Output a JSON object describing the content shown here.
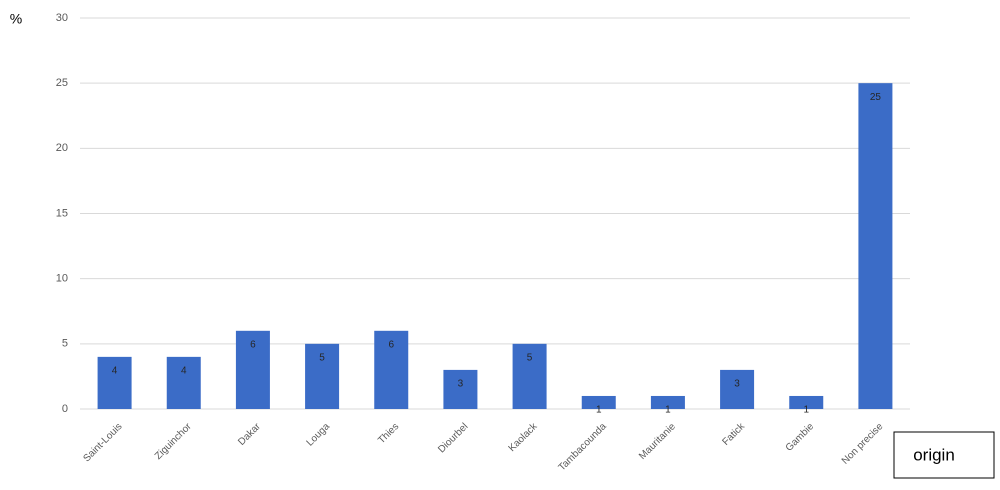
{
  "chart_data": {
    "type": "bar",
    "y_label": "%",
    "annotation": "origin",
    "categories": [
      "Saint-Louis",
      "Ziguinchor",
      "Dakar",
      "Louga",
      "Thies",
      "Diourbel",
      "Kaolack",
      "Tambacounda",
      "Mauritanie",
      "Fatick",
      "Gambie",
      "Non precise"
    ],
    "values": [
      4,
      4,
      6,
      5,
      6,
      3,
      5,
      1,
      1,
      3,
      1,
      25
    ],
    "color": "#3b6cc7",
    "ylim": [
      0,
      30
    ],
    "yticks": [
      0,
      5,
      10,
      15,
      20,
      25,
      30
    ],
    "grid": true
  }
}
